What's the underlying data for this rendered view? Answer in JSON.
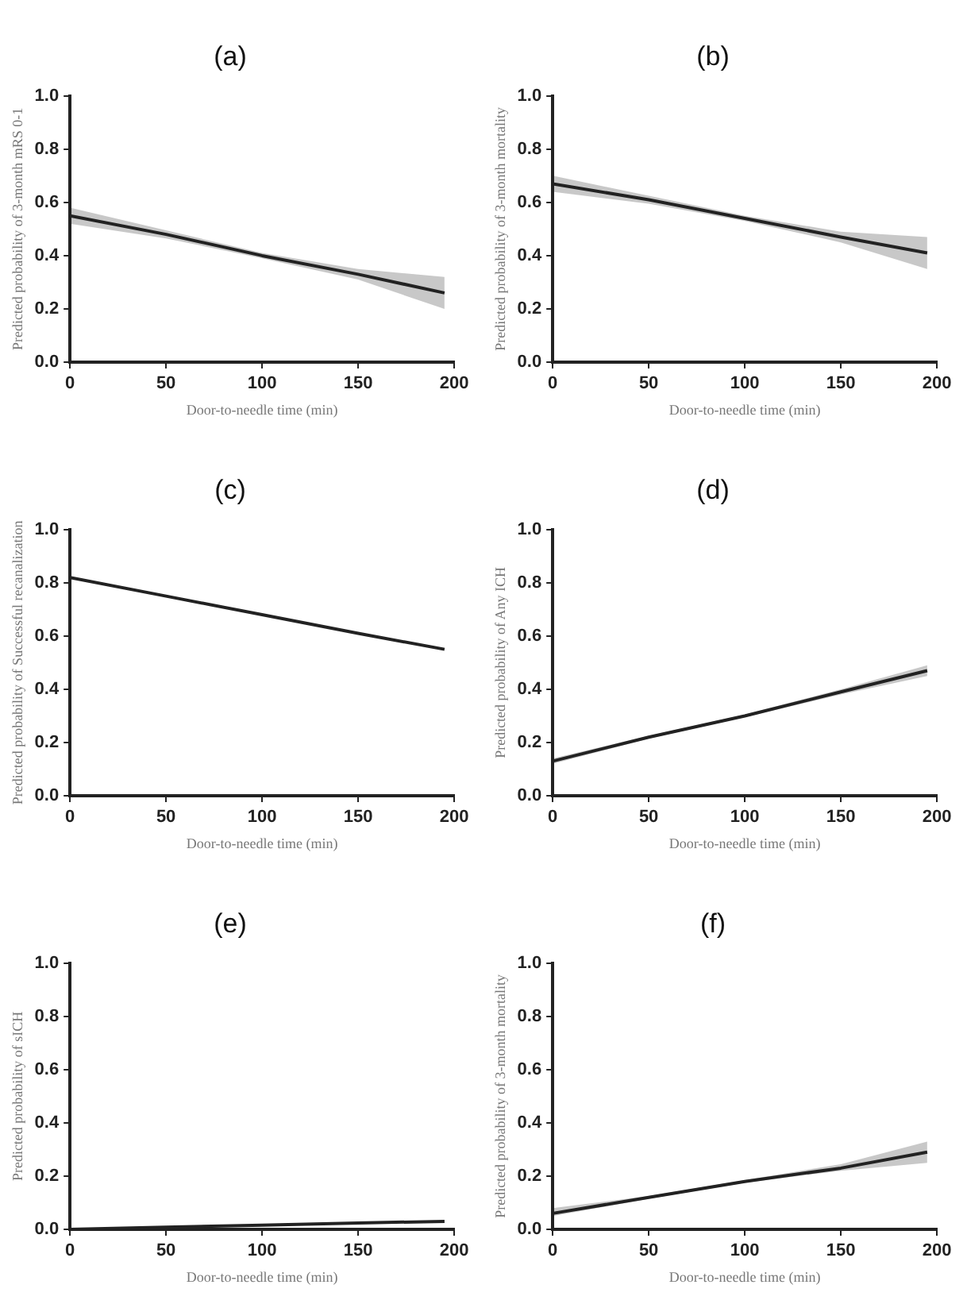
{
  "chart_data": [
    {
      "type": "line",
      "title": "(a)",
      "xlabel": "Door-to-needle time (min)",
      "ylabel": "Predicted probability of 3-month mRS 0-1",
      "xlim": [
        0,
        200
      ],
      "xticks": [
        0,
        50,
        100,
        150,
        200
      ],
      "ylim": [
        0,
        1
      ],
      "yticks": [
        {
          "value": 0,
          "label": "0.0"
        },
        {
          "value": 0.2,
          "label": "0.2"
        },
        {
          "value": 0.4,
          "label": "0.4"
        },
        {
          "value": 0.6,
          "label": "0.6"
        },
        {
          "value": 0.8,
          "label": "0.8"
        },
        {
          "value": 1,
          "label": "1.0"
        }
      ],
      "x": [
        0,
        50,
        100,
        150,
        195
      ],
      "series": [
        {
          "color": "#222222",
          "values": [
            0.55,
            0.48,
            0.4,
            0.33,
            0.26
          ],
          "lower": [
            0.52,
            0.465,
            0.39,
            0.31,
            0.2
          ],
          "upper": [
            0.58,
            0.495,
            0.41,
            0.35,
            0.32
          ]
        }
      ]
    },
    {
      "type": "line",
      "title": "(b)",
      "xlabel": "Door-to-needle time (min)",
      "ylabel": "Predicted probability of 3-month mortality",
      "xlim": [
        0,
        200
      ],
      "xticks": [
        0,
        50,
        100,
        150,
        200
      ],
      "ylim": [
        0,
        1
      ],
      "yticks": [
        {
          "value": 0,
          "label": "0.0"
        },
        {
          "value": 0.2,
          "label": "0.2"
        },
        {
          "value": 0.4,
          "label": "0.4"
        },
        {
          "value": 0.6,
          "label": "0.6"
        },
        {
          "value": 0.8,
          "label": "0.8"
        },
        {
          "value": 1,
          "label": "1.0"
        }
      ],
      "x": [
        0,
        50,
        100,
        150,
        195
      ],
      "series": [
        {
          "color": "#222222",
          "values": [
            0.67,
            0.61,
            0.54,
            0.47,
            0.41
          ],
          "lower": [
            0.64,
            0.595,
            0.53,
            0.45,
            0.35
          ],
          "upper": [
            0.7,
            0.625,
            0.55,
            0.49,
            0.47
          ]
        }
      ]
    },
    {
      "type": "line",
      "title": "(c)",
      "xlabel": "Door-to-needle time (min)",
      "ylabel": "Predicted probability of Successful recanalization",
      "xlim": [
        0,
        200
      ],
      "xticks": [
        0,
        50,
        100,
        150,
        200
      ],
      "ylim": [
        0,
        1
      ],
      "yticks": [
        {
          "value": 0,
          "label": "0.0"
        },
        {
          "value": 0.2,
          "label": "0.2"
        },
        {
          "value": 0.4,
          "label": "0.4"
        },
        {
          "value": 0.6,
          "label": "0.6"
        },
        {
          "value": 0.8,
          "label": "0.8"
        },
        {
          "value": 1,
          "label": "1.0"
        }
      ],
      "x": [
        0,
        50,
        100,
        150,
        195
      ],
      "series": [
        {
          "color": "#222222",
          "values": [
            0.82,
            0.75,
            0.68,
            0.61,
            0.55
          ]
        }
      ]
    },
    {
      "type": "line",
      "title": "(d)",
      "xlabel": "Door-to-needle time (min)",
      "ylabel": "Predicted probability of Any ICH",
      "xlim": [
        0,
        200
      ],
      "xticks": [
        0,
        50,
        100,
        150,
        200
      ],
      "ylim": [
        0,
        1
      ],
      "yticks": [
        {
          "value": 0,
          "label": "0.0"
        },
        {
          "value": 0.2,
          "label": "0.2"
        },
        {
          "value": 0.4,
          "label": "0.4"
        },
        {
          "value": 0.6,
          "label": "0.6"
        },
        {
          "value": 0.8,
          "label": "0.8"
        },
        {
          "value": 1,
          "label": "1.0"
        }
      ],
      "x": [
        0,
        50,
        100,
        150,
        195
      ],
      "series": [
        {
          "color": "#222222",
          "values": [
            0.13,
            0.22,
            0.3,
            0.39,
            0.47
          ],
          "lower": [
            0.12,
            0.215,
            0.295,
            0.38,
            0.45
          ],
          "upper": [
            0.14,
            0.225,
            0.305,
            0.4,
            0.49
          ]
        }
      ]
    },
    {
      "type": "line",
      "title": "(e)",
      "xlabel": "Door-to-needle time (min)",
      "ylabel": "Predicted probability of sICH",
      "xlim": [
        0,
        200
      ],
      "xticks": [
        0,
        50,
        100,
        150,
        200
      ],
      "ylim": [
        0,
        1
      ],
      "yticks": [
        {
          "value": 0,
          "label": "0.0"
        },
        {
          "value": 0.2,
          "label": "0.2"
        },
        {
          "value": 0.4,
          "label": "0.4"
        },
        {
          "value": 0.6,
          "label": "0.6"
        },
        {
          "value": 0.8,
          "label": "0.8"
        },
        {
          "value": 1,
          "label": "1.0"
        }
      ],
      "x": [
        0,
        50,
        100,
        150,
        195
      ],
      "series": [
        {
          "color": "#222222",
          "values": [
            0.0,
            0.008,
            0.016,
            0.024,
            0.03
          ]
        }
      ]
    },
    {
      "type": "line",
      "title": "(f)",
      "xlabel": "Door-to-needle time (min)",
      "ylabel": "Predicted probability of 3-month mortality",
      "xlim": [
        0,
        200
      ],
      "xticks": [
        0,
        50,
        100,
        150,
        200
      ],
      "ylim": [
        0,
        1
      ],
      "yticks": [
        {
          "value": 0,
          "label": "0.0"
        },
        {
          "value": 0.2,
          "label": "0.2"
        },
        {
          "value": 0.4,
          "label": "0.4"
        },
        {
          "value": 0.6,
          "label": "0.6"
        },
        {
          "value": 0.8,
          "label": "0.8"
        },
        {
          "value": 1,
          "label": "1.0"
        }
      ],
      "x": [
        0,
        50,
        100,
        150,
        195
      ],
      "series": [
        {
          "color": "#222222",
          "values": [
            0.06,
            0.12,
            0.18,
            0.23,
            0.29
          ],
          "lower": [
            0.05,
            0.115,
            0.175,
            0.22,
            0.25
          ],
          "upper": [
            0.08,
            0.125,
            0.185,
            0.245,
            0.33
          ]
        }
      ]
    }
  ]
}
